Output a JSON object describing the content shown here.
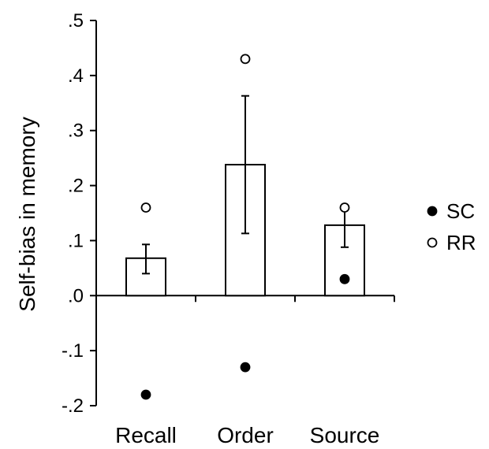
{
  "chart_data": {
    "type": "bar",
    "title": "",
    "xlabel": "",
    "ylabel": "Self-bias in memory",
    "ylim": [
      -0.2,
      0.5
    ],
    "yticks": [
      {
        "value": 0.5,
        "label": ".5"
      },
      {
        "value": 0.4,
        "label": ".4"
      },
      {
        "value": 0.3,
        "label": ".3"
      },
      {
        "value": 0.2,
        "label": ".2"
      },
      {
        "value": 0.1,
        "label": ".1"
      },
      {
        "value": 0.0,
        "label": ".0"
      },
      {
        "value": -0.1,
        "label": "-.1"
      },
      {
        "value": -0.2,
        "label": "-.2"
      }
    ],
    "categories": [
      "Recall",
      "Order",
      "Source"
    ],
    "bars": {
      "values": [
        0.068,
        0.238,
        0.128
      ],
      "error_low": [
        0.04,
        0.113,
        0.088
      ],
      "error_high": [
        0.093,
        0.363,
        0.163
      ]
    },
    "series": [
      {
        "name": "SC",
        "marker": "filled-circle",
        "values": [
          -0.18,
          -0.13,
          0.03
        ]
      },
      {
        "name": "RR",
        "marker": "open-circle",
        "values": [
          0.16,
          0.43,
          0.16
        ]
      }
    ],
    "grid": false,
    "legend": "right",
    "colors": {
      "bar_fill": "#ffffff",
      "stroke": "#000000"
    }
  }
}
